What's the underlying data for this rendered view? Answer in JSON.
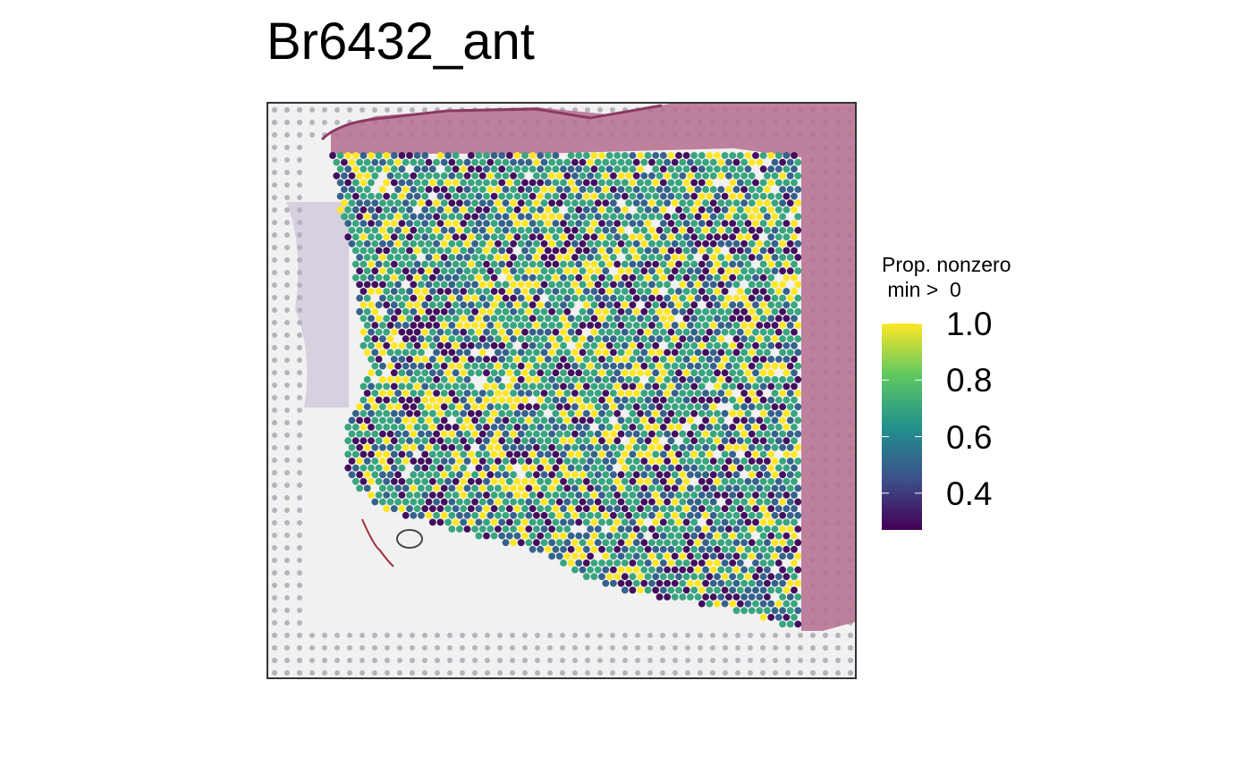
{
  "chart_data": {
    "type": "scatter",
    "title": "Br6432_ant",
    "xlabel": "",
    "ylabel": "",
    "legend": {
      "title_line1": "Prop. nonzero",
      "title_line2": " min >  0",
      "position": "right",
      "scale": "viridis",
      "range": [
        0.27,
        1.0
      ],
      "ticks": [
        {
          "value": 1.0,
          "label": "1.0"
        },
        {
          "value": 0.8,
          "label": "0.8"
        },
        {
          "value": 0.6,
          "label": "0.6"
        },
        {
          "value": 0.4,
          "label": "0.4"
        }
      ]
    },
    "colormap": [
      "#440154",
      "#3b528b",
      "#21918c",
      "#5ec962",
      "#fde725"
    ],
    "spot_classes": [
      {
        "value": 0.3,
        "share": 0.2
      },
      {
        "value": 0.5,
        "share": 0.22
      },
      {
        "value": 0.7,
        "share": 0.38
      },
      {
        "value": 1.0,
        "share": 0.2
      }
    ],
    "grid": false,
    "background": "H&E tissue image"
  }
}
